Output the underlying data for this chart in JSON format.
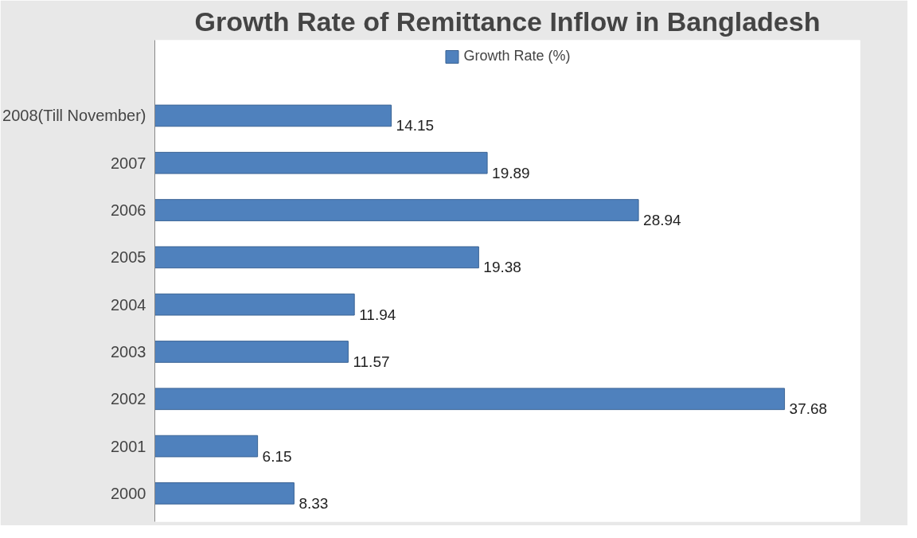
{
  "chart_data": {
    "type": "bar",
    "orientation": "horizontal",
    "title": "Growth Rate of Remittance Inflow in Bangladesh",
    "categories": [
      "2008(Till November)",
      "2007",
      "2006",
      "2005",
      "2004",
      "2003",
      "2002",
      "2001",
      "2000"
    ],
    "series": [
      {
        "name": "Growth Rate (%)",
        "color": "#4f81bd",
        "values": [
          14.15,
          19.89,
          28.94,
          19.38,
          11.94,
          11.57,
          37.68,
          6.15,
          8.33
        ]
      }
    ],
    "data_labels": true,
    "legend": "top",
    "grid": false
  }
}
